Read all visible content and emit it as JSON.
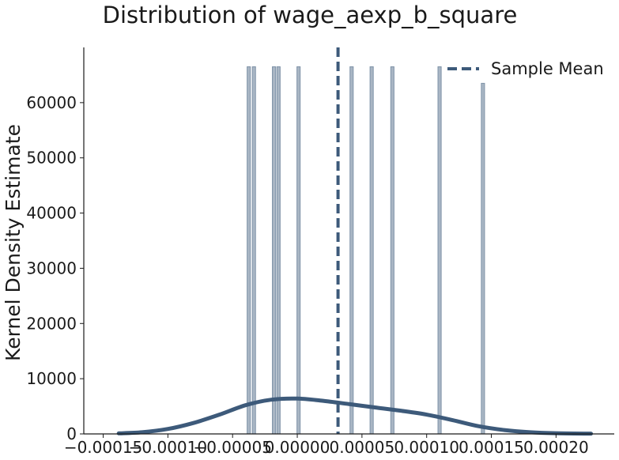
{
  "chart_data": {
    "type": "area",
    "title": "Distribution of wage_aexp_b_square",
    "xlabel": "",
    "ylabel": "Kernel Density Estimate",
    "xlim": [
      -0.000165,
      0.000245
    ],
    "ylim": [
      0,
      70000
    ],
    "xticks": [
      -0.00015,
      -0.0001,
      -5e-05,
      0.0,
      5e-05,
      0.0001,
      0.00015,
      0.0002
    ],
    "xtick_labels": [
      "−0.00015",
      "−0.00010",
      "−0.00005",
      "0.00000",
      "0.00005",
      "0.00010",
      "0.00015",
      "0.00020"
    ],
    "yticks": [
      0,
      10000,
      20000,
      30000,
      40000,
      50000,
      60000
    ],
    "ytick_labels": [
      "0",
      "10000",
      "20000",
      "30000",
      "40000",
      "50000",
      "60000"
    ],
    "grid": false,
    "legend": {
      "position": "top-right",
      "entries": [
        "Sample Mean"
      ]
    },
    "kde_curve": {
      "x": [
        -0.000138,
        -0.00012,
        -0.0001,
        -8e-05,
        -6e-05,
        -4e-05,
        -2e-05,
        0.0,
        2e-05,
        4e-05,
        6e-05,
        8e-05,
        0.0001,
        0.00012,
        0.00014,
        0.00016,
        0.00018,
        0.0002,
        0.000227
      ],
      "y": [
        100,
        300,
        900,
        2000,
        3500,
        5200,
        6200,
        6400,
        6000,
        5400,
        4800,
        4200,
        3500,
        2500,
        1400,
        700,
        300,
        120,
        50
      ]
    },
    "histogram_bars": {
      "x": [
        -3.75e-05,
        -3.35e-05,
        -1.8e-05,
        -1.45e-05,
        1e-06,
        4.2e-05,
        5.75e-05,
        7.35e-05,
        0.00011,
        0.0001435
      ],
      "y": [
        66500,
        66500,
        66500,
        66500,
        66500,
        66500,
        66500,
        66500,
        66500,
        63500
      ],
      "bar_width": 2.5e-06
    },
    "sample_mean": 3.15e-05,
    "colors": {
      "curve": "#3d5a7a",
      "bar_fill": "#a9b6c4",
      "bar_edge": "#7f93a8",
      "mean_line": "#3d5a7a",
      "axis": "#1a1a1a"
    }
  }
}
